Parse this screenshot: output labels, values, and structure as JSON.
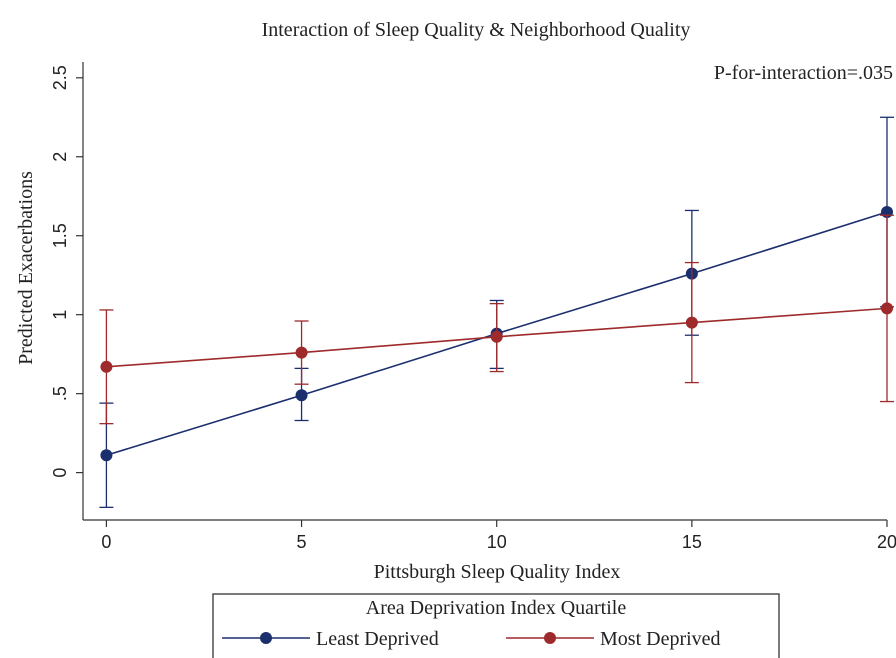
{
  "chart_data": {
    "type": "line",
    "title": "Interaction of Sleep Quality & Neighborhood Quality",
    "annotation": "P-for-interaction=.035",
    "xlabel": "Pittsburgh Sleep Quality Index",
    "ylabel": "Predicted Exacerbations",
    "x": [
      0,
      5,
      10,
      15,
      20
    ],
    "x_tick_labels": [
      "0",
      "5",
      "10",
      "15",
      "20"
    ],
    "y_ticks": [
      0,
      0.5,
      1,
      1.5,
      2,
      2.5
    ],
    "y_tick_labels": [
      "0",
      ".5",
      "1",
      "1.5",
      "2",
      "2.5"
    ],
    "xlim": [
      -0.6,
      20
    ],
    "ylim": [
      -0.3,
      2.6
    ],
    "grid": false,
    "legend": {
      "title": "Area Deprivation Index Quartile",
      "placement": "bottom"
    },
    "series": [
      {
        "name": "Least Deprived",
        "color": "#1b2f6e",
        "values": [
          0.11,
          0.49,
          0.88,
          1.26,
          1.65
        ],
        "ci_low": [
          -0.22,
          0.33,
          0.66,
          0.87,
          1.05
        ],
        "ci_high": [
          0.44,
          0.66,
          1.09,
          1.66,
          2.25
        ]
      },
      {
        "name": "Most Deprived",
        "color": "#9e2a2b",
        "values": [
          0.67,
          0.76,
          0.86,
          0.95,
          1.04
        ],
        "ci_low": [
          0.31,
          0.56,
          0.64,
          0.57,
          0.45
        ],
        "ci_high": [
          1.03,
          0.96,
          1.07,
          1.33,
          1.63
        ]
      }
    ]
  }
}
